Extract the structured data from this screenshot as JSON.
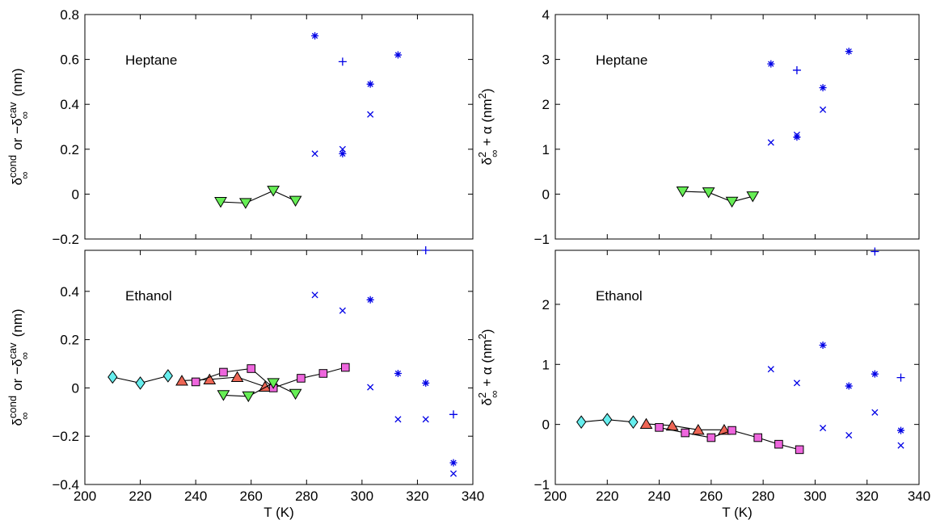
{
  "chart_data": [
    {
      "type": "scatter",
      "panel": "top-left",
      "annotation": "Heptane",
      "xlabel": "",
      "ylabel": "δ∞cond or −δ∞cav (nm)",
      "xlim": [
        200,
        340
      ],
      "ylim": [
        -0.2,
        0.8
      ],
      "xticks": [],
      "yticks": [
        -0.2,
        0,
        0.2,
        0.4,
        0.6,
        0.8
      ],
      "ytick_labels": [
        "−0.2",
        "0",
        "0.2",
        "0.4",
        "0.6",
        "0.8"
      ],
      "series": [
        {
          "marker": "triangle-down",
          "color": "#66ee55",
          "connected": true,
          "points": [
            [
              249,
              -0.035
            ],
            [
              258,
              -0.04
            ],
            [
              268,
              0.015
            ],
            [
              276,
              -0.03
            ]
          ]
        },
        {
          "marker": "x",
          "color": "#0000e6",
          "connected": false,
          "points": [
            [
              283,
              0.18
            ],
            [
              293,
              0.2
            ],
            [
              303,
              0.355
            ]
          ]
        },
        {
          "marker": "star",
          "color": "#0000e6",
          "connected": false,
          "points": [
            [
              283,
              0.705
            ],
            [
              293,
              0.18
            ],
            [
              303,
              0.49
            ],
            [
              313,
              0.62
            ]
          ]
        },
        {
          "marker": "plus",
          "color": "#0000e6",
          "connected": false,
          "points": [
            [
              293,
              0.59
            ]
          ]
        }
      ]
    },
    {
      "type": "scatter",
      "panel": "top-right",
      "annotation": "Heptane",
      "xlabel": "",
      "ylabel": "δ∞² + α (nm²)",
      "xlim": [
        200,
        340
      ],
      "ylim": [
        -1,
        4
      ],
      "xticks": [],
      "yticks": [
        -1,
        0,
        1,
        2,
        3,
        4
      ],
      "ytick_labels": [
        "−1",
        "0",
        "1",
        "2",
        "3",
        "4"
      ],
      "series": [
        {
          "marker": "triangle-down",
          "color": "#66ee55",
          "connected": true,
          "points": [
            [
              249,
              0.06
            ],
            [
              259,
              0.04
            ],
            [
              268,
              -0.17
            ],
            [
              276,
              -0.05
            ]
          ]
        },
        {
          "marker": "x",
          "color": "#0000e6",
          "connected": false,
          "points": [
            [
              283,
              1.15
            ],
            [
              293,
              1.32
            ],
            [
              303,
              1.88
            ]
          ]
        },
        {
          "marker": "star",
          "color": "#0000e6",
          "connected": false,
          "points": [
            [
              283,
              2.9
            ],
            [
              293,
              1.27
            ],
            [
              303,
              2.37
            ],
            [
              313,
              3.18
            ]
          ]
        },
        {
          "marker": "plus",
          "color": "#0000e6",
          "connected": false,
          "points": [
            [
              293,
              2.76
            ]
          ]
        }
      ]
    },
    {
      "type": "scatter",
      "panel": "bottom-left",
      "annotation": "Ethanol",
      "xlabel": "T (K)",
      "ylabel": "δ∞cond or −δ∞cav (nm)",
      "xlim": [
        200,
        340
      ],
      "ylim": [
        -0.4,
        0.57
      ],
      "xticks": [
        200,
        220,
        240,
        260,
        280,
        300,
        320,
        340
      ],
      "yticks": [
        -0.4,
        -0.2,
        0,
        0.2,
        0.4
      ],
      "ytick_labels": [
        "−0.4",
        "−0.2",
        "0",
        "0.2",
        "0.4"
      ],
      "series": [
        {
          "marker": "diamond",
          "color": "#66eeee",
          "connected": true,
          "points": [
            [
              210,
              0.045
            ],
            [
              220,
              0.02
            ],
            [
              230,
              0.05
            ]
          ]
        },
        {
          "marker": "triangle-up",
          "color": "#ee6655",
          "connected": true,
          "points": [
            [
              235,
              0.03
            ],
            [
              245,
              0.035
            ],
            [
              255,
              0.045
            ],
            [
              265,
              0.005
            ]
          ]
        },
        {
          "marker": "square",
          "color": "#ee66dd",
          "connected": true,
          "points": [
            [
              240,
              0.025
            ],
            [
              250,
              0.065
            ],
            [
              260,
              0.08
            ],
            [
              268,
              0.0
            ],
            [
              278,
              0.04
            ],
            [
              286,
              0.06
            ],
            [
              294,
              0.085
            ]
          ]
        },
        {
          "marker": "triangle-down",
          "color": "#66ee55",
          "connected": true,
          "points": [
            [
              250,
              -0.03
            ],
            [
              259,
              -0.035
            ],
            [
              268,
              0.02
            ],
            [
              276,
              -0.025
            ]
          ]
        },
        {
          "marker": "x",
          "color": "#0000e6",
          "connected": false,
          "points": [
            [
              283,
              0.385
            ],
            [
              293,
              0.32
            ],
            [
              303,
              0.003
            ],
            [
              313,
              -0.13
            ],
            [
              323,
              -0.13
            ],
            [
              333,
              -0.355
            ]
          ]
        },
        {
          "marker": "star",
          "color": "#0000e6",
          "connected": false,
          "points": [
            [
              303,
              0.365
            ],
            [
              313,
              0.06
            ],
            [
              323,
              0.02
            ],
            [
              333,
              -0.31
            ]
          ]
        },
        {
          "marker": "plus",
          "color": "#0000e6",
          "connected": false,
          "points": [
            [
              323,
              0.57
            ],
            [
              333,
              -0.11
            ]
          ]
        }
      ]
    },
    {
      "type": "scatter",
      "panel": "bottom-right",
      "annotation": "Ethanol",
      "xlabel": "T (K)",
      "ylabel": "δ∞² + α (nm²)",
      "xlim": [
        200,
        340
      ],
      "ylim": [
        -1,
        2.9
      ],
      "xticks": [
        200,
        220,
        240,
        260,
        280,
        300,
        320,
        340
      ],
      "yticks": [
        -1,
        0,
        1,
        2
      ],
      "ytick_labels": [
        "−1",
        "0",
        "1",
        "2"
      ],
      "series": [
        {
          "marker": "diamond",
          "color": "#66eeee",
          "connected": true,
          "points": [
            [
              210,
              0.04
            ],
            [
              220,
              0.08
            ],
            [
              230,
              0.04
            ]
          ]
        },
        {
          "marker": "triangle-up",
          "color": "#ee6655",
          "connected": true,
          "points": [
            [
              235,
              0.01
            ],
            [
              245,
              -0.02
            ],
            [
              255,
              -0.09
            ],
            [
              265,
              -0.09
            ]
          ]
        },
        {
          "marker": "square",
          "color": "#ee66dd",
          "connected": true,
          "points": [
            [
              240,
              -0.05
            ],
            [
              250,
              -0.14
            ],
            [
              260,
              -0.22
            ],
            [
              268,
              -0.1
            ],
            [
              278,
              -0.22
            ],
            [
              286,
              -0.33
            ],
            [
              294,
              -0.42
            ]
          ]
        },
        {
          "marker": "x",
          "color": "#0000e6",
          "connected": false,
          "points": [
            [
              283,
              0.92
            ],
            [
              293,
              0.69
            ],
            [
              303,
              -0.06
            ],
            [
              313,
              -0.18
            ],
            [
              323,
              0.2
            ],
            [
              333,
              -0.35
            ]
          ]
        },
        {
          "marker": "star",
          "color": "#0000e6",
          "connected": false,
          "points": [
            [
              303,
              1.32
            ],
            [
              313,
              0.64
            ],
            [
              323,
              0.84
            ],
            [
              333,
              -0.1
            ]
          ]
        },
        {
          "marker": "plus",
          "color": "#0000e6",
          "connected": false,
          "points": [
            [
              323,
              2.88
            ],
            [
              333,
              0.78
            ]
          ]
        }
      ]
    }
  ]
}
